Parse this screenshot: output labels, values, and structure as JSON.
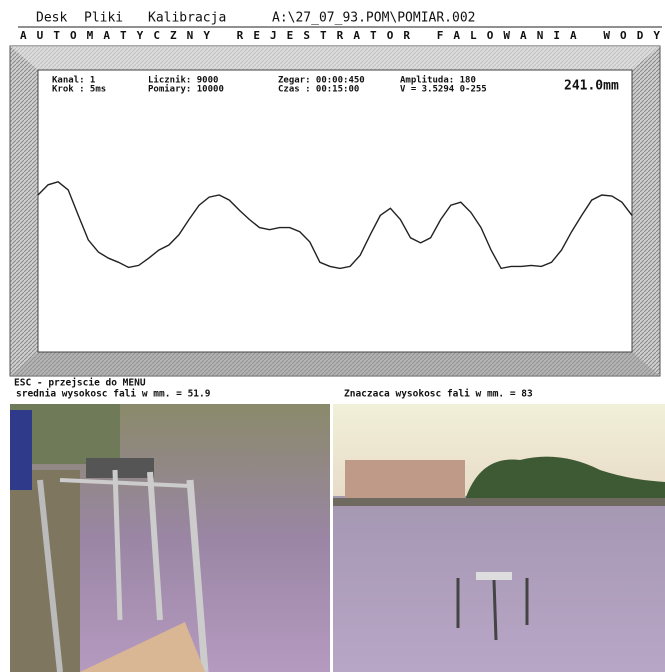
{
  "menu": [
    "Desk",
    "Pliki",
    "Kalibracja"
  ],
  "path": "A:\\27_07_93.POM\\POMIAR.002",
  "banner": "AUTOMATYCZNY REJESTRATOR FALOWANIA WODY",
  "status": {
    "channel": "Kanal: 1",
    "step": "Krok : 5ms",
    "counter": "Licznik: 9000",
    "measurements": "Pomiary: 10000",
    "clock": "Zegar: 00:00:450",
    "time": "Czas : 00:15:00",
    "amplitude": "Amplituda: 180",
    "voltage": "V = 3.5294 0-255",
    "level": "241.0mm"
  },
  "chart_data": {
    "type": "line",
    "color": "#222222",
    "ylim": [
      0,
      255
    ],
    "values": [
      152,
      162,
      165,
      157,
      132,
      108,
      96,
      90,
      86,
      81,
      83,
      90,
      98,
      103,
      113,
      128,
      142,
      150,
      152,
      147,
      137,
      128,
      120,
      118,
      120,
      120,
      116,
      106,
      86,
      82,
      80,
      82,
      93,
      113,
      132,
      139,
      128,
      110,
      105,
      110,
      128,
      142,
      145,
      135,
      120,
      98,
      80,
      82,
      82,
      83,
      82,
      86,
      98,
      116,
      132,
      147,
      152,
      151,
      145,
      132
    ]
  },
  "footer": {
    "esc": "ESC - przejscie do MENU",
    "mean": "srednia wysokosc fali w mm. = 51.9",
    "significant": "Znaczaca wysokosc fali w mm. = 83"
  }
}
